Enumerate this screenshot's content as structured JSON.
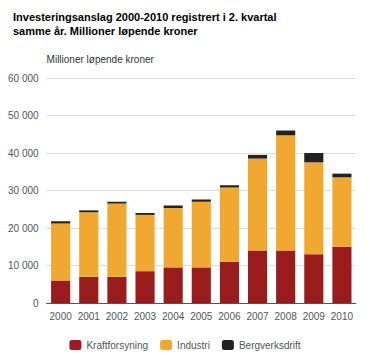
{
  "chart_data": {
    "type": "bar",
    "stacked": true,
    "title": "Investeringsanslag 2000-2010 registrert i 2. kvartal",
    "subtitle": "samme år. Millioner løpende kroner",
    "ylabel": "Millioner løpende kroner",
    "categories": [
      "2000",
      "2001",
      "2002",
      "2003",
      "2004",
      "2005",
      "2006",
      "2007",
      "2008",
      "2009",
      "2010"
    ],
    "series": [
      {
        "name": "Kraftforsyning",
        "color": "#9b1c1c",
        "values": [
          6000,
          7000,
          7000,
          8500,
          9500,
          9500,
          11000,
          14000,
          14000,
          13000,
          15000
        ]
      },
      {
        "name": "Industri",
        "color": "#f0a830",
        "values": [
          15200,
          17200,
          19500,
          15000,
          15800,
          17500,
          19800,
          24500,
          30700,
          24500,
          18500
        ]
      },
      {
        "name": "Bergverksdrift",
        "color": "#222222",
        "values": [
          600,
          500,
          500,
          500,
          700,
          600,
          600,
          1000,
          1300,
          2500,
          1000
        ]
      }
    ],
    "ylim": [
      0,
      60000
    ],
    "yticks": [
      0,
      {
        "value": 10000,
        "label": "10 000"
      },
      {
        "value": 20000,
        "label": "20 000"
      },
      {
        "value": 30000,
        "label": "30 000"
      },
      {
        "value": 40000,
        "label": "40 000"
      },
      {
        "value": 50000,
        "label": "50 000"
      },
      {
        "value": 60000,
        "label": "60 000"
      }
    ],
    "grid": true,
    "legend": "bottom"
  }
}
